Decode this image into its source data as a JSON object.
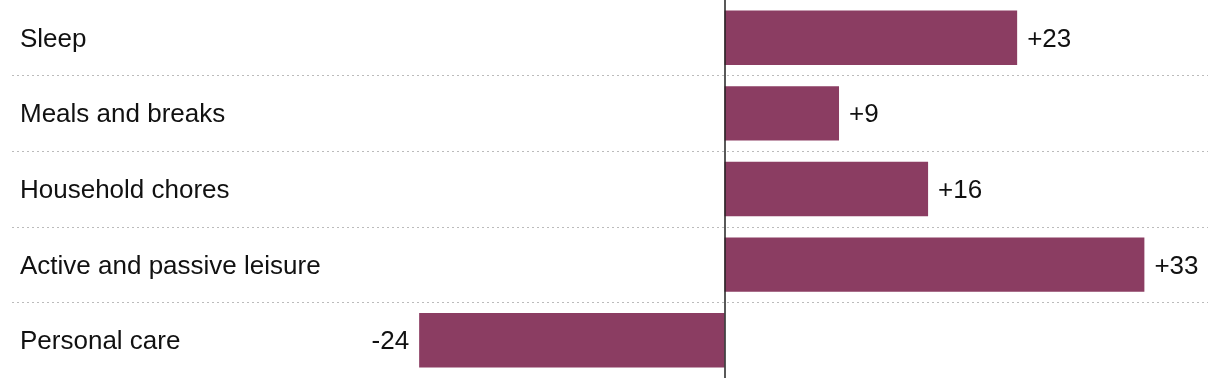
{
  "chart_data": {
    "type": "bar",
    "orientation": "horizontal",
    "categories": [
      "Sleep",
      "Meals and breaks",
      "Household chores",
      "Active and passive leisure",
      "Personal care"
    ],
    "values": [
      23,
      9,
      16,
      33,
      -24
    ],
    "value_labels": [
      "+23",
      "+9",
      "+16",
      "+33",
      "-24"
    ],
    "color": "#8b3d62",
    "xlim": [
      -56,
      38
    ],
    "grid": "y",
    "tick_labels": "y",
    "ref_lines": [
      {
        "axis": "x",
        "value": 0,
        "color": "#222222",
        "line_style": "solid"
      }
    ]
  }
}
